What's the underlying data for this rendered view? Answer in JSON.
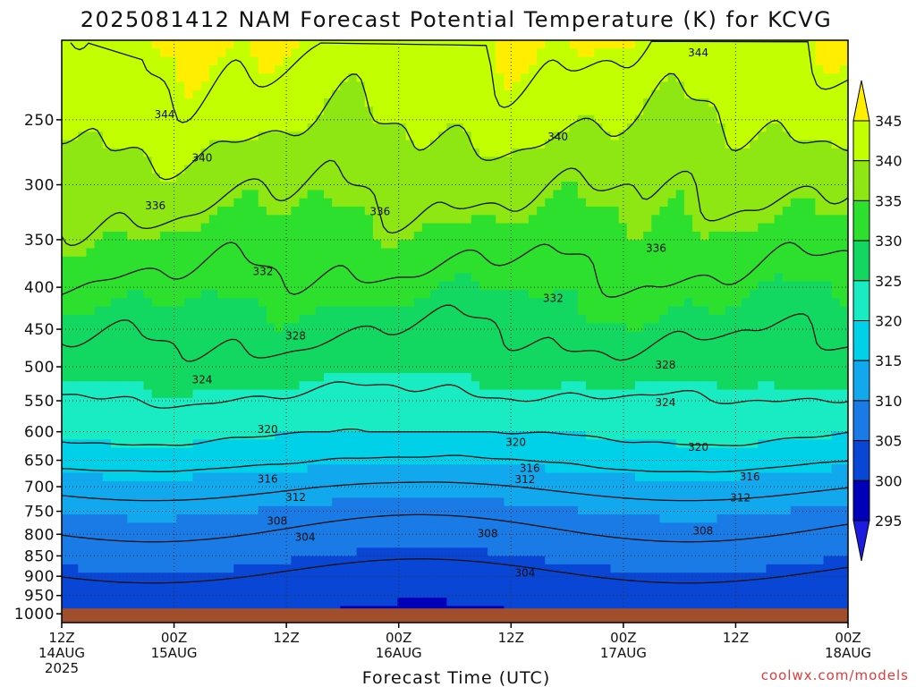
{
  "chart_data": {
    "type": "heatmap",
    "title": "2025081412 NAM Forecast Potential Temperature (K) for KCVG",
    "xlabel": "Forecast Time (UTC)",
    "ylabel": "",
    "credit": "coolwx.com/models",
    "y_scale": "log",
    "ylim": [
      1025,
      200
    ],
    "y_ticks": [
      250,
      300,
      350,
      400,
      450,
      500,
      550,
      600,
      650,
      700,
      750,
      800,
      850,
      900,
      950,
      1000
    ],
    "x_range": [
      "2025-08-14T12:00Z",
      "2025-08-18T00:00Z"
    ],
    "x_ticks": [
      {
        "hour": 0,
        "line1": "12Z",
        "line2": "14AUG",
        "line3": "2025"
      },
      {
        "hour": 12,
        "line1": "00Z",
        "line2": "15AUG",
        "line3": ""
      },
      {
        "hour": 24,
        "line1": "12Z",
        "line2": "",
        "line3": ""
      },
      {
        "hour": 36,
        "line1": "00Z",
        "line2": "16AUG",
        "line3": ""
      },
      {
        "hour": 48,
        "line1": "12Z",
        "line2": "",
        "line3": ""
      },
      {
        "hour": 60,
        "line1": "00Z",
        "line2": "17AUG",
        "line3": ""
      },
      {
        "hour": 72,
        "line1": "12Z",
        "line2": "",
        "line3": ""
      },
      {
        "hour": 84,
        "line1": "00Z",
        "line2": "18AUG",
        "line3": ""
      }
    ],
    "colorbar": {
      "levels": [
        295,
        300,
        305,
        310,
        315,
        320,
        325,
        330,
        335,
        340,
        345
      ],
      "colors": [
        "#1c1ce0",
        "#0000b8",
        "#0a46d6",
        "#1a7ae6",
        "#12a8ee",
        "#00d0e8",
        "#19ecc2",
        "#12d862",
        "#2ee02e",
        "#8ee612",
        "#c2ff00",
        "#ffee00"
      ],
      "extend": "both"
    },
    "grid": true,
    "surface_color": "#a14e2d",
    "theta_profile_pressures": [
      1000,
      950,
      900,
      850,
      800,
      750,
      700,
      650,
      600,
      550,
      500,
      450,
      400,
      350,
      300,
      250,
      200
    ],
    "theta_profile_K": [
      300.5,
      301.5,
      303.5,
      305.5,
      307.5,
      309.5,
      312.5,
      316.5,
      320.5,
      323.5,
      326.5,
      328.5,
      331.0,
      334.0,
      337.0,
      341.0,
      344.5
    ],
    "contour_levels": [
      304,
      308,
      312,
      316,
      320,
      324,
      328,
      332,
      336,
      340,
      344
    ],
    "contour_labels": [
      {
        "text": "344",
        "hour": 11,
        "p": 246
      },
      {
        "text": "344",
        "hour": 68,
        "p": 207
      },
      {
        "text": "340",
        "hour": 15,
        "p": 278
      },
      {
        "text": "340",
        "hour": 53,
        "p": 262
      },
      {
        "text": "336",
        "hour": 10,
        "p": 318
      },
      {
        "text": "336",
        "hour": 34,
        "p": 323
      },
      {
        "text": "336",
        "hour": 63.5,
        "p": 358
      },
      {
        "text": "332",
        "hour": 21.5,
        "p": 382
      },
      {
        "text": "332",
        "hour": 52.5,
        "p": 412
      },
      {
        "text": "328",
        "hour": 25,
        "p": 458
      },
      {
        "text": "328",
        "hour": 64.5,
        "p": 497
      },
      {
        "text": "324",
        "hour": 15,
        "p": 518
      },
      {
        "text": "324",
        "hour": 64.5,
        "p": 552
      },
      {
        "text": "320",
        "hour": 22,
        "p": 595
      },
      {
        "text": "320",
        "hour": 48.5,
        "p": 617
      },
      {
        "text": "320",
        "hour": 68,
        "p": 626
      },
      {
        "text": "316",
        "hour": 22,
        "p": 684
      },
      {
        "text": "316",
        "hour": 50,
        "p": 664
      },
      {
        "text": "316",
        "hour": 73.5,
        "p": 680
      },
      {
        "text": "312",
        "hour": 25,
        "p": 720
      },
      {
        "text": "312",
        "hour": 49.5,
        "p": 685
      },
      {
        "text": "312",
        "hour": 72.5,
        "p": 721
      },
      {
        "text": "308",
        "hour": 23,
        "p": 770
      },
      {
        "text": "308",
        "hour": 45.5,
        "p": 797
      },
      {
        "text": "308",
        "hour": 68.5,
        "p": 791
      },
      {
        "text": "304",
        "hour": 26,
        "p": 806
      },
      {
        "text": "304",
        "hour": 49.5,
        "p": 891
      }
    ]
  }
}
